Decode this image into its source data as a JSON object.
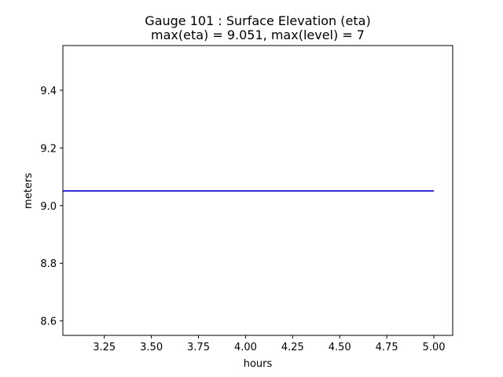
{
  "chart_data": {
    "type": "line",
    "title_line1": "Gauge 101 : Surface Elevation (eta)",
    "title_line2": "max(eta) =   9.051,    max(level) = 7",
    "xlabel": "hours",
    "ylabel": "meters",
    "xlim": [
      3.03,
      5.1
    ],
    "ylim": [
      8.55,
      9.555
    ],
    "xticks": [
      3.25,
      3.5,
      3.75,
      4.0,
      4.25,
      4.5,
      4.75,
      5.0
    ],
    "xtick_labels": [
      "3.25",
      "3.50",
      "3.75",
      "4.00",
      "4.25",
      "4.50",
      "4.75",
      "5.00"
    ],
    "yticks": [
      8.6,
      8.8,
      9.0,
      9.2,
      9.4
    ],
    "ytick_labels": [
      "8.6",
      "8.8",
      "9.0",
      "9.2",
      "9.4"
    ],
    "grid": false,
    "series": [
      {
        "color": "#0000cc",
        "x": [
          3.03,
          5.0
        ],
        "y": [
          9.051,
          9.051
        ]
      }
    ]
  }
}
